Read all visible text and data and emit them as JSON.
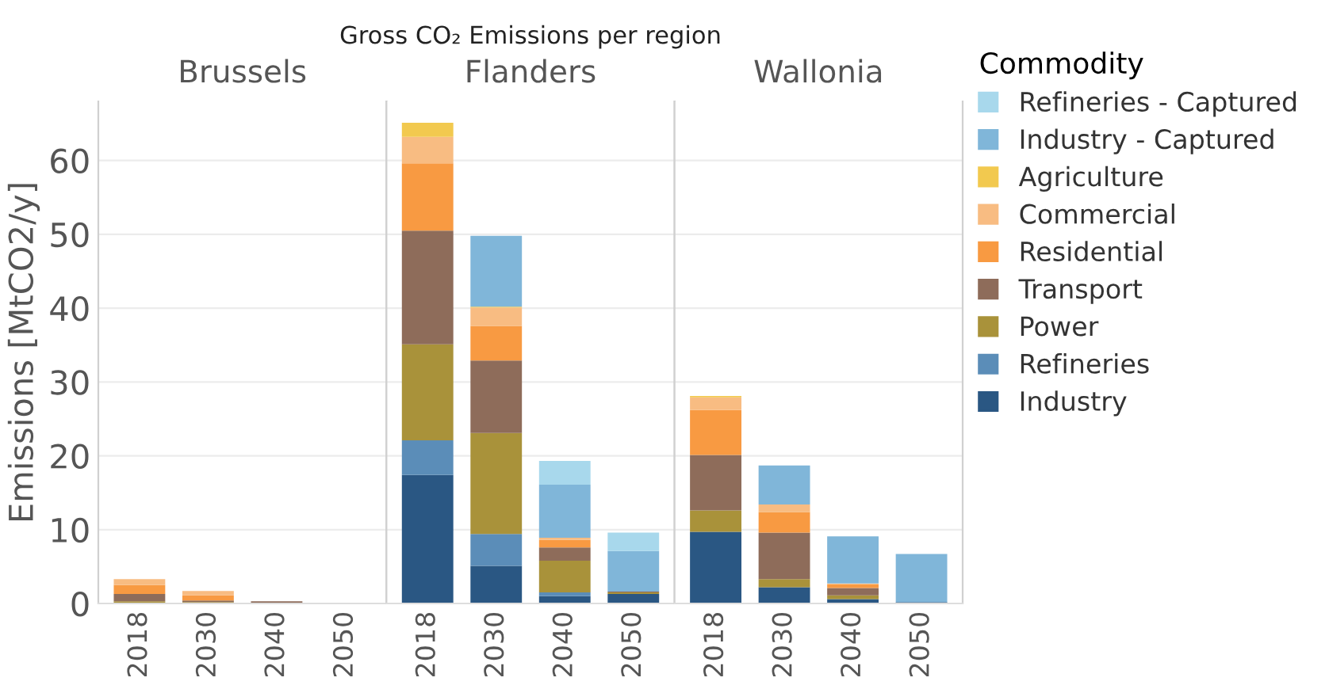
{
  "chart_data": [
    {
      "type": "bar",
      "stacked": true,
      "subtitle": "Brussels",
      "ylabel": "Emissions [MtCO2/y]",
      "categories": [
        "2018",
        "2030",
        "2040",
        "2050"
      ],
      "ylim": [
        0,
        68
      ],
      "yticks": [
        0,
        10,
        20,
        30,
        40,
        50,
        60
      ],
      "grid": "y",
      "series": [
        {
          "color": "#2a5783",
          "values": [
            0,
            0,
            0,
            0
          ]
        },
        {
          "color": "#5b8db8",
          "values": [
            0,
            0,
            0,
            0
          ]
        },
        {
          "color": "#a9923a",
          "values": [
            0.3,
            0.2,
            0,
            0
          ]
        },
        {
          "color": "#8e6c5a",
          "values": [
            1.0,
            0.2,
            0.3,
            0
          ]
        },
        {
          "color": "#f89a42",
          "values": [
            1.2,
            0.7,
            0,
            0
          ]
        },
        {
          "color": "#f8bc82",
          "values": [
            0.8,
            0.6,
            0,
            0
          ]
        },
        {
          "color": "#f2c94f",
          "values": [
            0,
            0,
            0,
            0
          ]
        },
        {
          "color": "#80b6d9",
          "values": [
            0,
            0,
            0,
            0
          ]
        },
        {
          "color": "#a8d8ec",
          "values": [
            0,
            0,
            0,
            0
          ]
        }
      ]
    },
    {
      "type": "bar",
      "stacked": true,
      "title": "Gross CO₂ Emissions per region",
      "subtitle": "Flanders",
      "categories": [
        "2018",
        "2030",
        "2040",
        "2050"
      ],
      "ylim": [
        0,
        68
      ],
      "tick_labels": "x",
      "grid": "y",
      "series": [
        {
          "color": "#2a5783",
          "values": [
            17.4,
            5.1,
            1.0,
            1.3
          ]
        },
        {
          "color": "#5b8db8",
          "values": [
            4.7,
            4.3,
            0.5,
            0
          ]
        },
        {
          "color": "#a9923a",
          "values": [
            13.0,
            13.7,
            4.3,
            0.2
          ]
        },
        {
          "color": "#8e6c5a",
          "values": [
            15.4,
            9.8,
            1.8,
            0.1
          ]
        },
        {
          "color": "#f89a42",
          "values": [
            9.1,
            4.7,
            1.0,
            0
          ]
        },
        {
          "color": "#f8bc82",
          "values": [
            3.6,
            2.5,
            0.3,
            0
          ]
        },
        {
          "color": "#f2c94f",
          "values": [
            1.9,
            0.1,
            0,
            0
          ]
        },
        {
          "color": "#80b6d9",
          "values": [
            0,
            9.6,
            7.2,
            5.5
          ]
        },
        {
          "color": "#a8d8ec",
          "values": [
            0,
            0,
            3.2,
            2.5
          ]
        }
      ]
    },
    {
      "type": "bar",
      "stacked": true,
      "subtitle": "Wallonia",
      "categories": [
        "2018",
        "2030",
        "2040",
        "2050"
      ],
      "ylim": [
        0,
        68
      ],
      "tick_labels": "x",
      "grid": "y",
      "legend": "right",
      "legend_title": "Commodity",
      "series": [
        {
          "name": "Industry",
          "color": "#2a5783",
          "values": [
            9.7,
            2.2,
            0.6,
            0.2
          ]
        },
        {
          "name": "Refineries",
          "color": "#5b8db8",
          "values": [
            0,
            0,
            0,
            0
          ]
        },
        {
          "name": "Power",
          "color": "#a9923a",
          "values": [
            2.9,
            1.1,
            0.5,
            0
          ]
        },
        {
          "name": "Transport",
          "color": "#8e6c5a",
          "values": [
            7.5,
            6.3,
            1.0,
            0
          ]
        },
        {
          "name": "Residential",
          "color": "#f89a42",
          "values": [
            6.1,
            2.8,
            0.5,
            0
          ]
        },
        {
          "name": "Commercial",
          "color": "#f8bc82",
          "values": [
            1.7,
            1.0,
            0.1,
            0
          ]
        },
        {
          "name": "Agriculture",
          "color": "#f2c94f",
          "values": [
            0.2,
            0,
            0,
            0
          ]
        },
        {
          "name": "Industry - Captured",
          "color": "#80b6d9",
          "values": [
            0,
            5.3,
            6.4,
            6.5
          ]
        },
        {
          "name": "Refineries - Captured",
          "color": "#a8d8ec",
          "values": [
            0,
            0,
            0,
            0
          ]
        }
      ]
    }
  ]
}
